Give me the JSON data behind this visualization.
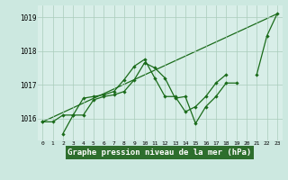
{
  "x": [
    0,
    1,
    2,
    3,
    4,
    5,
    6,
    7,
    8,
    9,
    10,
    11,
    12,
    13,
    14,
    15,
    16,
    17,
    18,
    19,
    20,
    21,
    22,
    23
  ],
  "line_jagged1": [
    1015.9,
    1015.9,
    1016.1,
    1016.1,
    1016.6,
    1016.65,
    1016.7,
    1016.8,
    1017.15,
    1017.55,
    1017.75,
    1017.2,
    1016.65,
    1016.65,
    1016.2,
    1016.35,
    1016.65,
    1017.05,
    1017.3,
    null,
    null,
    null,
    null,
    null
  ],
  "line_jagged2": [
    1015.9,
    null,
    1015.55,
    1016.1,
    1016.1,
    1016.55,
    1016.65,
    1016.7,
    1016.8,
    1017.15,
    1017.65,
    1017.5,
    1017.2,
    1016.6,
    1016.65,
    1015.85,
    1016.35,
    1016.65,
    1017.05,
    1017.05,
    null,
    1017.3,
    1018.45,
    1019.1
  ],
  "trend_x": [
    0,
    23
  ],
  "trend_y": [
    1015.9,
    1019.1
  ],
  "ylim": [
    1015.35,
    1019.35
  ],
  "xlim": [
    -0.5,
    23.5
  ],
  "yticks": [
    1016,
    1017,
    1018,
    1019
  ],
  "xticks": [
    0,
    1,
    2,
    3,
    4,
    5,
    6,
    7,
    8,
    9,
    10,
    11,
    12,
    13,
    14,
    15,
    16,
    17,
    18,
    19,
    20,
    21,
    22,
    23
  ],
  "xlabel": "Graphe pression niveau de la mer (hPa)",
  "bg_color": "#cce8e0",
  "plot_bg": "#d8eee8",
  "line_color": "#1a6b1a",
  "grid_color": "#aaccbb",
  "xlabel_bg": "#2d6e2d",
  "xlabel_color": "#ffffff"
}
